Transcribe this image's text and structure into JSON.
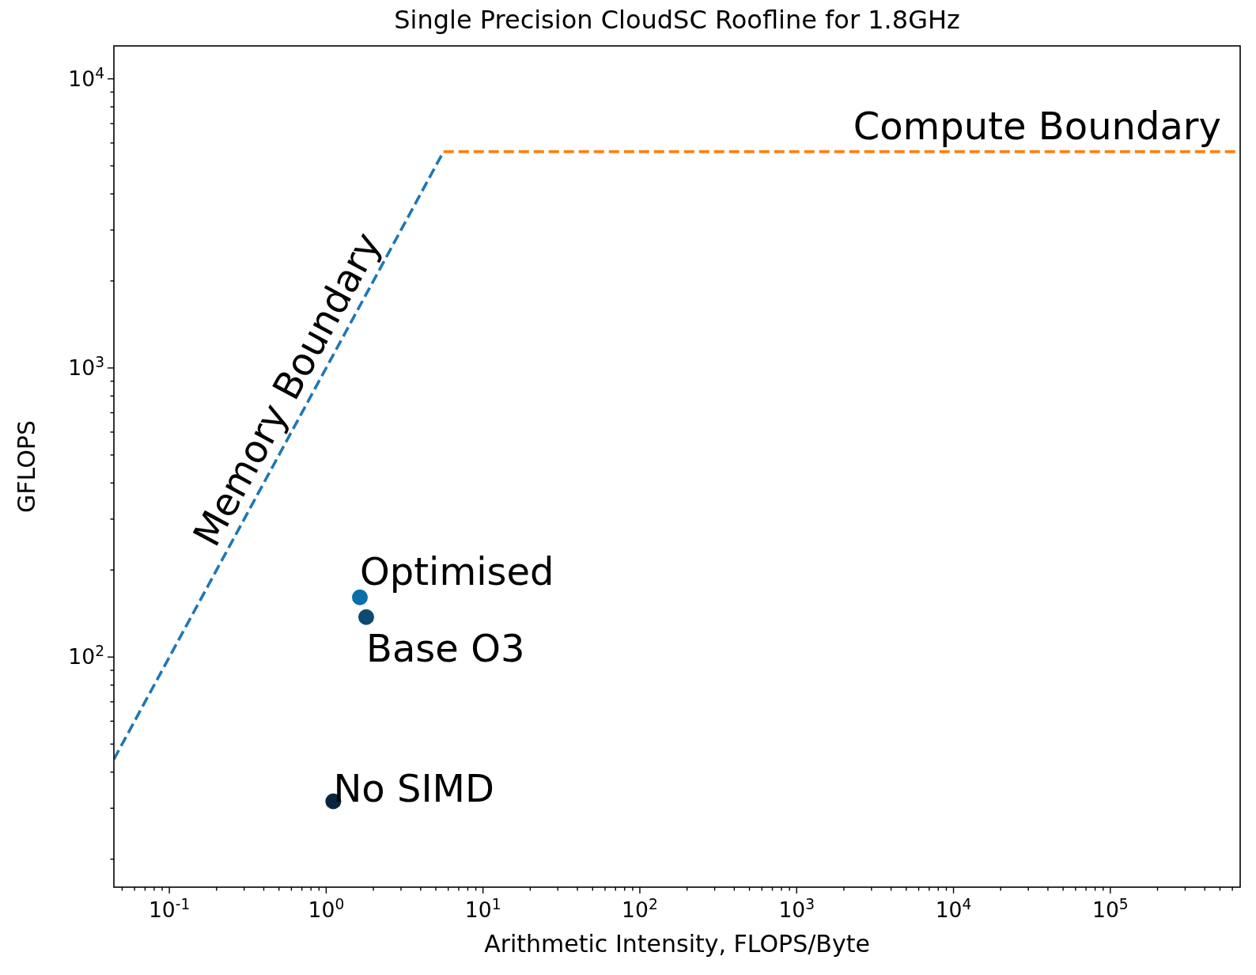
{
  "chart_data": {
    "type": "scatter",
    "title": "Single Precision CloudSC Roofline for 1.8GHz",
    "xlabel": "Arithmetic Intensity, FLOPS/Byte",
    "ylabel": "GFLOPS",
    "log": "xy",
    "grid": false,
    "marker": "circle",
    "xlim": [
      0.0443,
      673000
    ],
    "ylim": [
      16,
      13000
    ],
    "xticks": [
      {
        "value": 0.05,
        "label": null
      },
      {
        "value": 0.06,
        "label": null
      },
      {
        "value": 0.07,
        "label": null
      },
      {
        "value": 0.08,
        "label": null
      },
      {
        "value": 0.09,
        "label": null
      },
      {
        "value": 0.1,
        "label": "10$^{-1}$"
      },
      {
        "value": 0.2,
        "label": null
      },
      {
        "value": 0.3,
        "label": null
      },
      {
        "value": 0.4,
        "label": null
      },
      {
        "value": 0.5,
        "label": null
      },
      {
        "value": 0.6,
        "label": null
      },
      {
        "value": 0.7,
        "label": null
      },
      {
        "value": 0.8,
        "label": null
      },
      {
        "value": 0.9,
        "label": null
      },
      {
        "value": 1,
        "label": "10$^{0}$"
      },
      {
        "value": 2,
        "label": null
      },
      {
        "value": 3,
        "label": null
      },
      {
        "value": 4,
        "label": null
      },
      {
        "value": 5,
        "label": null
      },
      {
        "value": 6,
        "label": null
      },
      {
        "value": 7,
        "label": null
      },
      {
        "value": 8,
        "label": null
      },
      {
        "value": 9,
        "label": null
      },
      {
        "value": 10,
        "label": "10$^{1}$"
      },
      {
        "value": 20,
        "label": null
      },
      {
        "value": 30,
        "label": null
      },
      {
        "value": 40,
        "label": null
      },
      {
        "value": 50,
        "label": null
      },
      {
        "value": 60,
        "label": null
      },
      {
        "value": 70,
        "label": null
      },
      {
        "value": 80,
        "label": null
      },
      {
        "value": 90,
        "label": null
      },
      {
        "value": 100,
        "label": "10$^{2}$"
      },
      {
        "value": 200,
        "label": null
      },
      {
        "value": 300,
        "label": null
      },
      {
        "value": 400,
        "label": null
      },
      {
        "value": 500,
        "label": null
      },
      {
        "value": 600,
        "label": null
      },
      {
        "value": 700,
        "label": null
      },
      {
        "value": 800,
        "label": null
      },
      {
        "value": 900,
        "label": null
      },
      {
        "value": 1000,
        "label": "10$^{3}$"
      },
      {
        "value": 2000,
        "label": null
      },
      {
        "value": 3000,
        "label": null
      },
      {
        "value": 4000,
        "label": null
      },
      {
        "value": 5000,
        "label": null
      },
      {
        "value": 6000,
        "label": null
      },
      {
        "value": 7000,
        "label": null
      },
      {
        "value": 8000,
        "label": null
      },
      {
        "value": 9000,
        "label": null
      },
      {
        "value": 10000,
        "label": "10$^{4}$"
      },
      {
        "value": 20000,
        "label": null
      },
      {
        "value": 30000,
        "label": null
      },
      {
        "value": 40000,
        "label": null
      },
      {
        "value": 50000,
        "label": null
      },
      {
        "value": 60000,
        "label": null
      },
      {
        "value": 70000,
        "label": null
      },
      {
        "value": 80000,
        "label": null
      },
      {
        "value": 90000,
        "label": null
      },
      {
        "value": 100000,
        "label": "10$^{5}$"
      },
      {
        "value": 200000,
        "label": null
      },
      {
        "value": 300000,
        "label": null
      },
      {
        "value": 400000,
        "label": null
      },
      {
        "value": 500000,
        "label": null
      },
      {
        "value": 600000,
        "label": null
      }
    ],
    "yticks": [
      {
        "value": 20,
        "label": null
      },
      {
        "value": 30,
        "label": null
      },
      {
        "value": 40,
        "label": null
      },
      {
        "value": 50,
        "label": null
      },
      {
        "value": 60,
        "label": null
      },
      {
        "value": 70,
        "label": null
      },
      {
        "value": 80,
        "label": null
      },
      {
        "value": 90,
        "label": null
      },
      {
        "value": 100,
        "label": "10$^{2}$"
      },
      {
        "value": 200,
        "label": null
      },
      {
        "value": 300,
        "label": null
      },
      {
        "value": 400,
        "label": null
      },
      {
        "value": 500,
        "label": null
      },
      {
        "value": 600,
        "label": null
      },
      {
        "value": 700,
        "label": null
      },
      {
        "value": 800,
        "label": null
      },
      {
        "value": 900,
        "label": null
      },
      {
        "value": 1000,
        "label": "10$^{3}$"
      },
      {
        "value": 2000,
        "label": null
      },
      {
        "value": 3000,
        "label": null
      },
      {
        "value": 4000,
        "label": null
      },
      {
        "value": 5000,
        "label": null
      },
      {
        "value": 6000,
        "label": null
      },
      {
        "value": 7000,
        "label": null
      },
      {
        "value": 8000,
        "label": null
      },
      {
        "value": 9000,
        "label": null
      },
      {
        "value": 10000,
        "label": "10$^{4}$"
      }
    ],
    "series": [
      {
        "name": "Memory Boundary",
        "type": "line",
        "marker": "none",
        "line_style": "dashed",
        "color": "#1f77b4",
        "x": [
          0.0443,
          5.6
        ],
        "values": [
          44.3,
          5600
        ]
      },
      {
        "name": "Compute Boundary",
        "type": "line",
        "marker": "none",
        "line_style": "dashed",
        "color": "#ff7f0e",
        "x": [
          5.6,
          673000
        ],
        "values": [
          5600,
          5600
        ]
      },
      {
        "name": "Optimised",
        "color": "#0a6ea8",
        "x": [
          1.64
        ],
        "values": [
          161
        ]
      },
      {
        "name": "Base O3",
        "color": "#0d4a70",
        "x": [
          1.8
        ],
        "values": [
          137.5
        ]
      },
      {
        "name": "No SIMD",
        "color": "#0b2540",
        "x": [
          1.11
        ],
        "values": [
          31.7
        ]
      }
    ]
  }
}
